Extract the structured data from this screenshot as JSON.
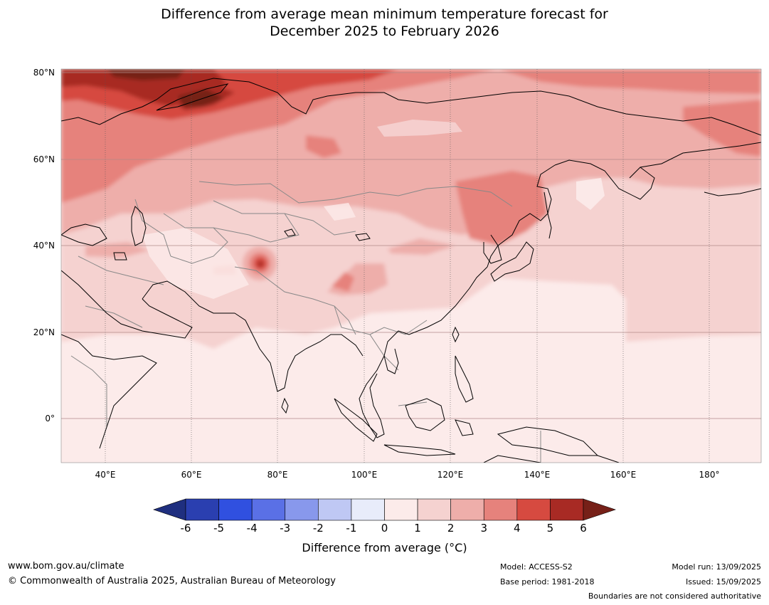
{
  "title_line1": "Difference from average mean minimum temperature forecast for",
  "title_line2": "December 2025 to February 2026",
  "map": {
    "lat_ticks": [
      "80°N",
      "60°N",
      "40°N",
      "20°N",
      "0°"
    ],
    "lon_ticks": [
      "40°E",
      "60°E",
      "80°E",
      "100°E",
      "120°E",
      "140°E",
      "160°E",
      "180°"
    ],
    "lon_range": [
      30,
      192
    ],
    "lat_range": [
      -10,
      81
    ]
  },
  "colorbar": {
    "ticks": [
      "-6",
      "-5",
      "-4",
      "-3",
      "-2",
      "-1",
      "0",
      "1",
      "2",
      "3",
      "4",
      "5",
      "6"
    ],
    "colors": [
      "#1f2f7f",
      "#2a3fb0",
      "#3050e0",
      "#5a70e6",
      "#8898ec",
      "#bfc8f4",
      "#e8ecfa",
      "#fcebea",
      "#f5d2d0",
      "#eeaeaa",
      "#e6827c",
      "#d64a40",
      "#a82a24",
      "#762018"
    ],
    "label": "Difference from average (°C)"
  },
  "footer": {
    "website": "www.bom.gov.au/climate",
    "copyright": "© Commonwealth of Australia 2025, Australian Bureau of Meteorology",
    "model": "Model: ACCESS-S2",
    "base_period": "Base period: 1981-2018",
    "model_run": "Model run: 13/09/2025",
    "issued": "Issued: 15/09/2025",
    "disclaimer": "Boundaries are not considered authoritative"
  }
}
